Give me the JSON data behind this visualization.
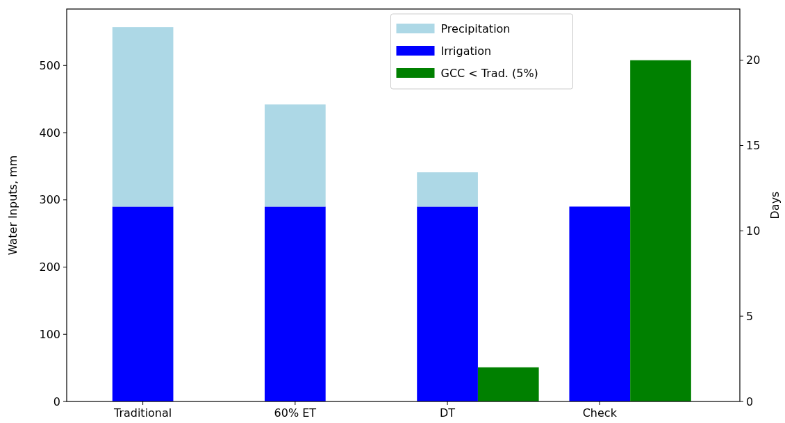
{
  "chart_data": {
    "type": "bar",
    "categories": [
      "Traditional",
      "60% ET",
      "DT",
      "Check"
    ],
    "ylabel": "Water Inputs, mm",
    "y2label": "Days",
    "stacked": true,
    "legend": "top",
    "ylim": [
      0,
      584
    ],
    "yticks": [
      0,
      100,
      200,
      300,
      400,
      500
    ],
    "y2lim": [
      0,
      23
    ],
    "y2ticks": [
      0,
      5,
      10,
      15,
      20
    ],
    "series": [
      {
        "name": "Irrigation",
        "color": "#0000ff",
        "values": [
          290,
          290,
          290,
          290
        ]
      },
      {
        "name": "Precipitation",
        "color": "#add8e6",
        "values": [
          267,
          152,
          51,
          0
        ]
      },
      {
        "name": "GCC < Trad. (5%)",
        "color": "#008000",
        "values": [
          0,
          0,
          2,
          20
        ],
        "axis": "y2"
      }
    ]
  }
}
